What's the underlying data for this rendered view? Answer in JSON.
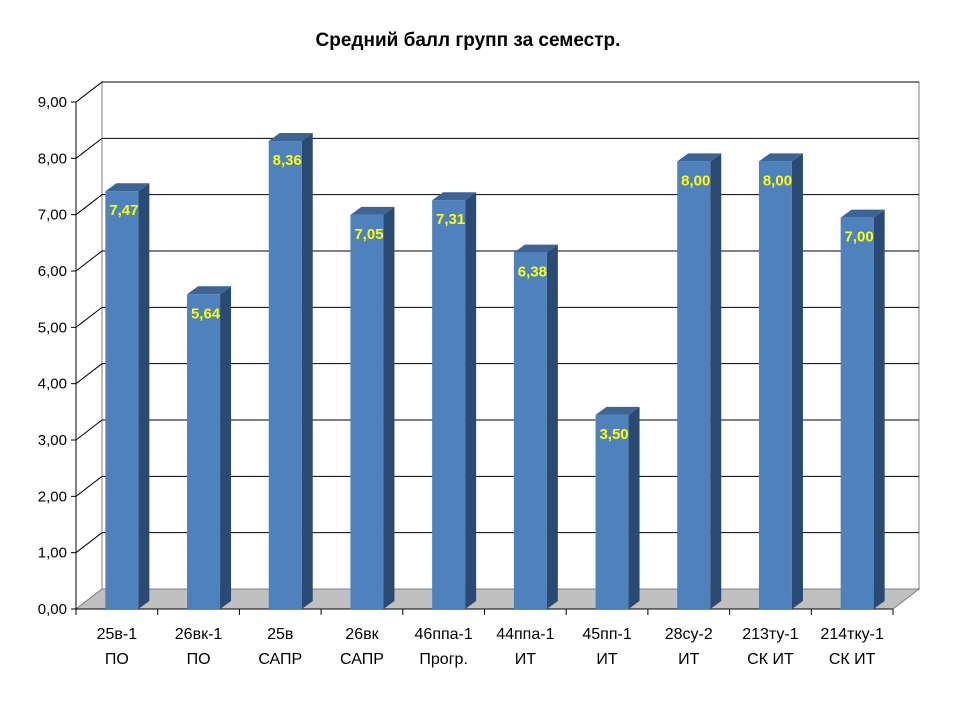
{
  "chart_data": {
    "type": "bar",
    "title": "Средний балл групп за семестр.",
    "xlabel": "",
    "ylabel": "",
    "ylim": [
      0,
      9
    ],
    "y_ticks": [
      "0,00",
      "1,00",
      "2,00",
      "3,00",
      "4,00",
      "5,00",
      "6,00",
      "7,00",
      "8,00",
      "9,00"
    ],
    "categories": [
      [
        "25в-1",
        "ПО"
      ],
      [
        "26вк-1",
        "ПО"
      ],
      [
        "25в",
        "САПР"
      ],
      [
        "26вк",
        "САПР"
      ],
      [
        "46ппа-1",
        "Прогр."
      ],
      [
        "44ппа-1",
        "ИТ"
      ],
      [
        "45пп-1",
        "ИТ"
      ],
      [
        "28су-2",
        "ИТ"
      ],
      [
        "213ту-1",
        "СК ИТ"
      ],
      [
        "214тку-1",
        "СК ИТ"
      ]
    ],
    "values": [
      7.47,
      5.64,
      8.36,
      7.05,
      7.31,
      6.38,
      3.5,
      8.0,
      8.0,
      7.0
    ],
    "data_labels": [
      "7,47",
      "5,64",
      "8,36",
      "7,05",
      "7,31",
      "6,38",
      "3,50",
      "8,00",
      "8,00",
      "7,00"
    ],
    "grid": true,
    "legend": "none",
    "style": "3d-column",
    "colors": {
      "bar_front": "#4f81bd",
      "bar_side": "#2b4a73",
      "bar_top": "#3d6494",
      "data_label": "#ffff00",
      "floor": "#c0c0c0",
      "gridline": "#000000"
    }
  }
}
